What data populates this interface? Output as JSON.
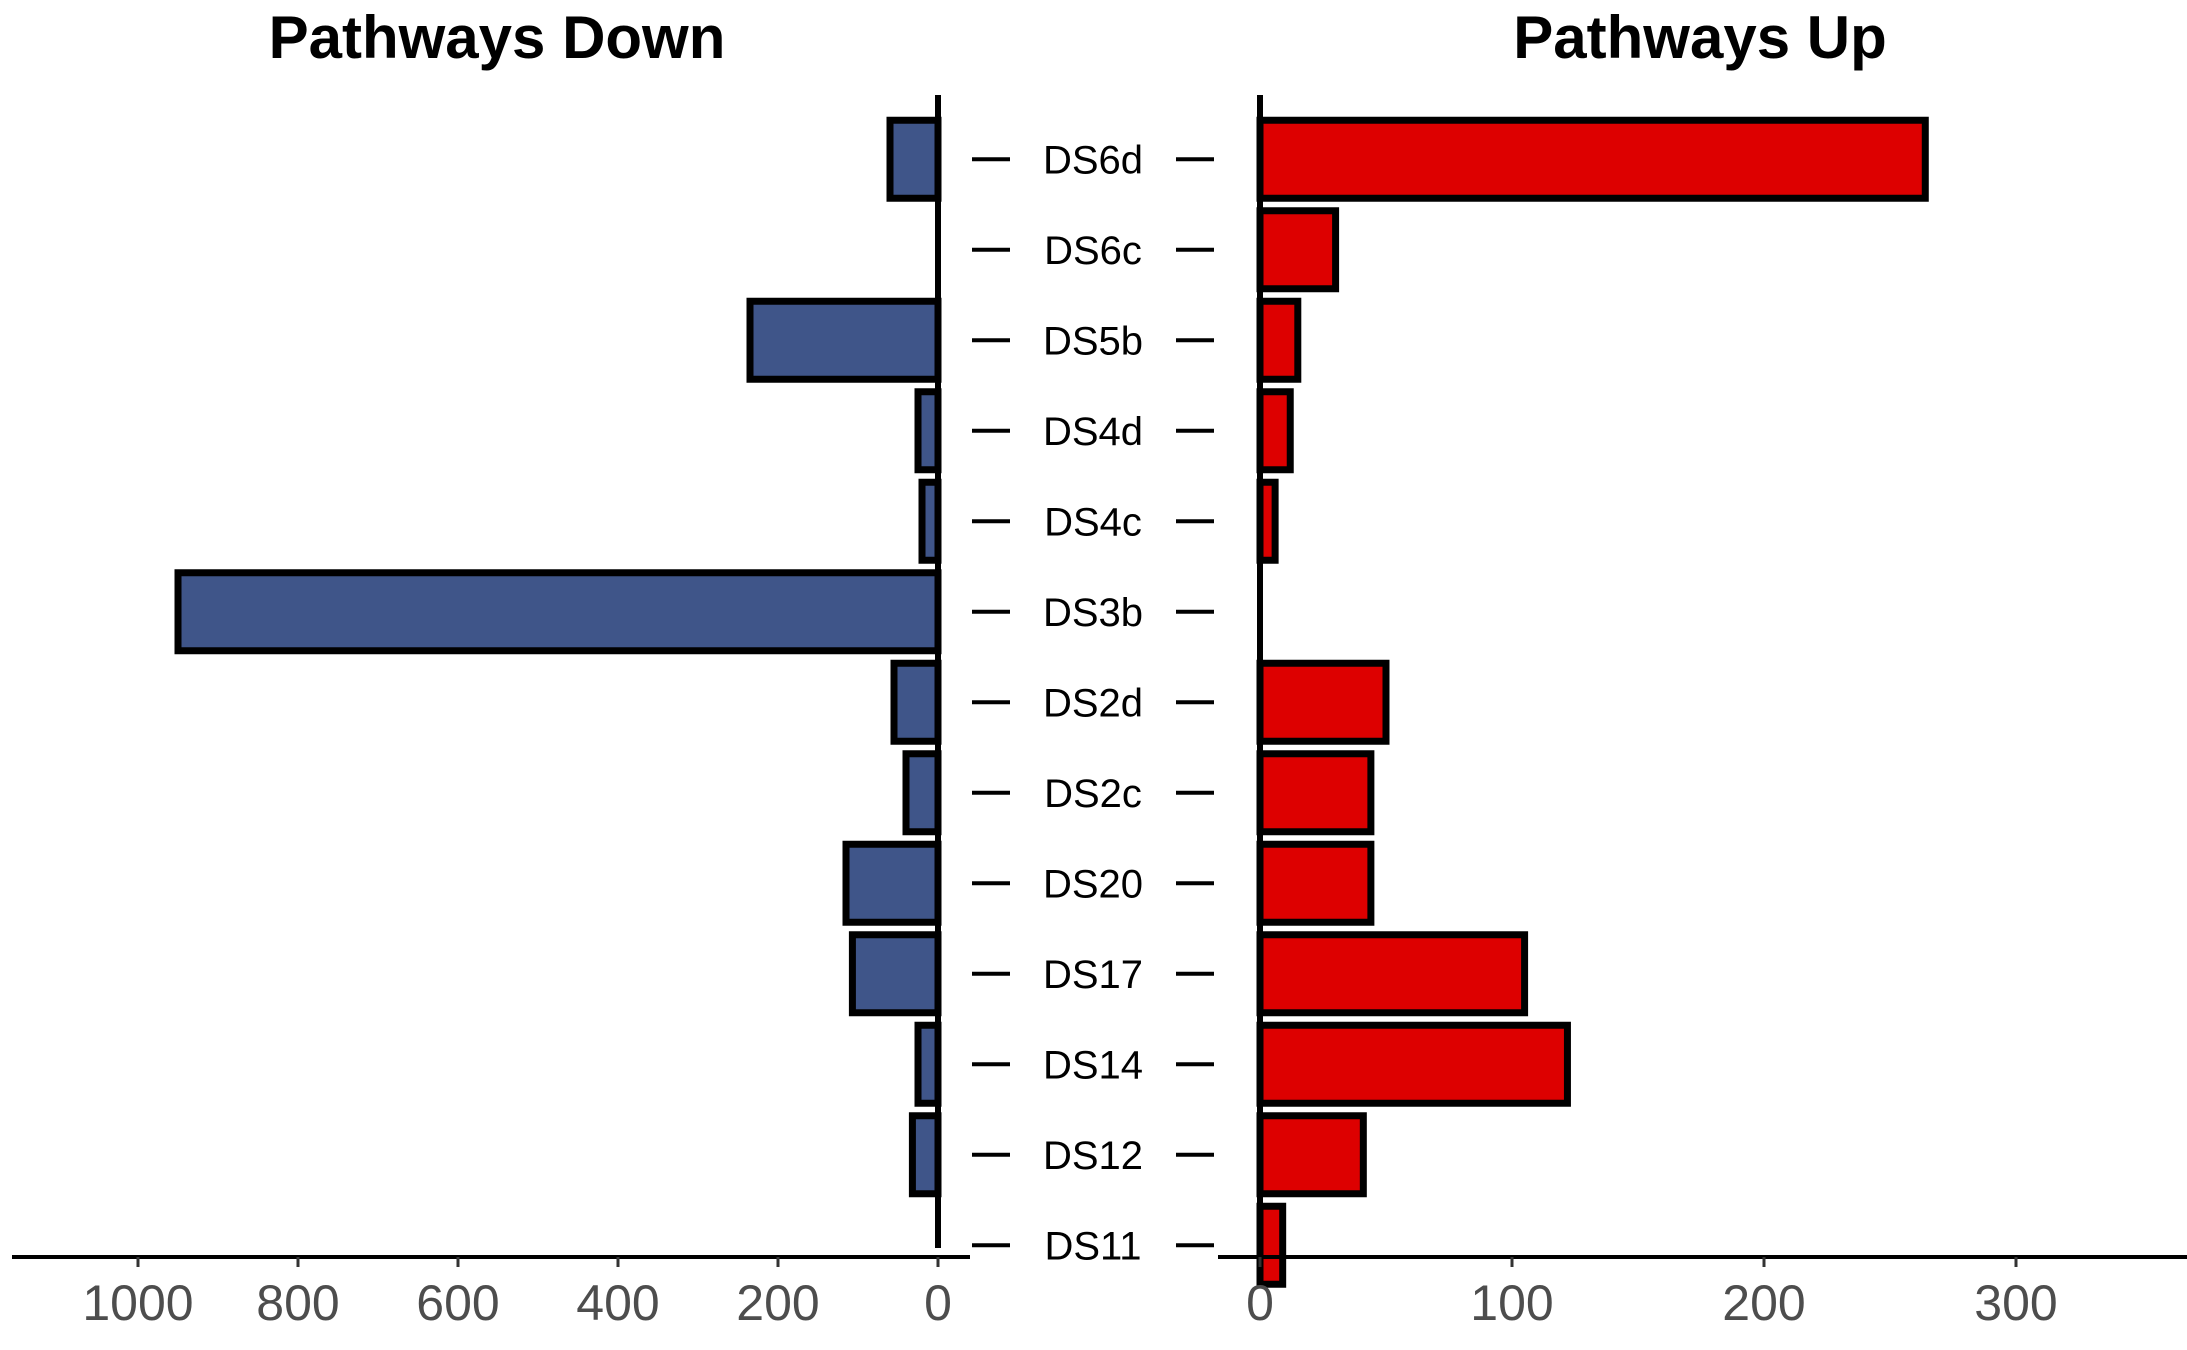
{
  "chart_data": [
    {
      "type": "bar",
      "orientation": "horizontal",
      "direction": "reversed",
      "title": "Pathways Down",
      "categories": [
        "DS6d",
        "DS6c",
        "DS5b",
        "DS4d",
        "DS4c",
        "DS3b",
        "DS2d",
        "DS2c",
        "DS20",
        "DS17",
        "DS14",
        "DS12",
        "DS11"
      ],
      "values": [
        60,
        0,
        235,
        25,
        20,
        950,
        55,
        40,
        115,
        107,
        25,
        32,
        0
      ],
      "xlim": [
        1150,
        0
      ],
      "xticks": [
        1000,
        800,
        600,
        400,
        200,
        0
      ],
      "color": "#3f5589",
      "edge_color": "#000000"
    },
    {
      "type": "bar",
      "orientation": "horizontal",
      "title": "Pathways Up",
      "categories": [
        "DS6d",
        "DS6c",
        "DS5b",
        "DS4d",
        "DS4c",
        "DS3b",
        "DS2d",
        "DS2c",
        "DS20",
        "DS17",
        "DS14",
        "DS12",
        "DS11"
      ],
      "values": [
        264,
        30,
        15,
        12,
        6,
        0,
        50,
        44,
        44,
        105,
        122,
        41,
        9
      ],
      "xlim": [
        -16,
        362
      ],
      "xticks": [
        0,
        100,
        200,
        300
      ],
      "color": "#dd0000",
      "edge_color": "#000000"
    }
  ]
}
